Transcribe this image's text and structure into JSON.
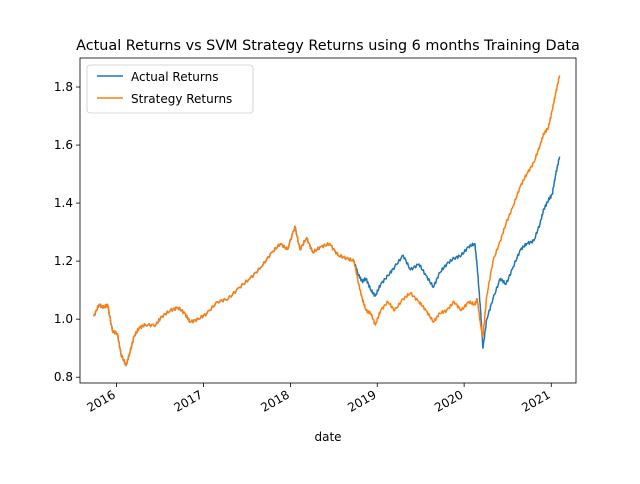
{
  "chart_data": {
    "type": "line",
    "title": "Actual Returns vs SVM Strategy Returns using 6 months Training Data",
    "xlabel": "date",
    "ylabel": "",
    "xlim": [
      "2015-08-01",
      "2021-04-15"
    ],
    "ylim": [
      0.78,
      1.9
    ],
    "x_ticks": [
      {
        "label": "2016",
        "date": "2016-01-01"
      },
      {
        "label": "2017",
        "date": "2017-01-01"
      },
      {
        "label": "2018",
        "date": "2018-01-01"
      },
      {
        "label": "2019",
        "date": "2019-01-01"
      },
      {
        "label": "2020",
        "date": "2020-01-01"
      },
      {
        "label": "2021",
        "date": "2021-01-01"
      }
    ],
    "y_ticks": [
      0.8,
      1.0,
      1.2,
      1.4,
      1.6,
      1.8
    ],
    "y_tick_labels": [
      "0.8",
      "1.0",
      "1.2",
      "1.4",
      "1.6",
      "1.8"
    ],
    "legend_position": "top-left",
    "grid": false,
    "series": [
      {
        "name": "Actual Returns",
        "color": "#1f77b4",
        "points": [
          [
            "2015-09-28",
            1.01
          ],
          [
            "2015-10-20",
            1.05
          ],
          [
            "2015-11-10",
            1.04
          ],
          [
            "2015-11-25",
            1.05
          ],
          [
            "2015-12-15",
            0.96
          ],
          [
            "2016-01-05",
            0.95
          ],
          [
            "2016-01-20",
            0.88
          ],
          [
            "2016-02-10",
            0.84
          ],
          [
            "2016-02-25",
            0.88
          ],
          [
            "2016-03-15",
            0.94
          ],
          [
            "2016-04-05",
            0.97
          ],
          [
            "2016-05-01",
            0.98
          ],
          [
            "2016-06-15",
            0.98
          ],
          [
            "2016-07-10",
            1.01
          ],
          [
            "2016-08-15",
            1.03
          ],
          [
            "2016-09-15",
            1.04
          ],
          [
            "2016-10-15",
            1.02
          ],
          [
            "2016-11-05",
            0.99
          ],
          [
            "2016-12-10",
            1.0
          ],
          [
            "2017-01-15",
            1.02
          ],
          [
            "2017-03-01",
            1.06
          ],
          [
            "2017-04-15",
            1.07
          ],
          [
            "2017-06-01",
            1.11
          ],
          [
            "2017-07-15",
            1.14
          ],
          [
            "2017-09-01",
            1.18
          ],
          [
            "2017-10-15",
            1.23
          ],
          [
            "2017-11-20",
            1.26
          ],
          [
            "2017-12-20",
            1.24
          ],
          [
            "2018-01-20",
            1.32
          ],
          [
            "2018-02-10",
            1.24
          ],
          [
            "2018-03-10",
            1.28
          ],
          [
            "2018-04-05",
            1.23
          ],
          [
            "2018-05-10",
            1.25
          ],
          [
            "2018-06-15",
            1.26
          ],
          [
            "2018-07-20",
            1.22
          ],
          [
            "2018-08-25",
            1.21
          ],
          [
            "2018-09-25",
            1.2
          ],
          [
            "2018-10-15",
            1.15
          ],
          [
            "2018-10-30",
            1.13
          ],
          [
            "2018-11-15",
            1.14
          ],
          [
            "2018-12-05",
            1.1
          ],
          [
            "2018-12-24",
            1.08
          ],
          [
            "2019-01-15",
            1.12
          ],
          [
            "2019-02-15",
            1.15
          ],
          [
            "2019-03-15",
            1.18
          ],
          [
            "2019-04-20",
            1.22
          ],
          [
            "2019-05-20",
            1.17
          ],
          [
            "2019-06-25",
            1.19
          ],
          [
            "2019-07-25",
            1.15
          ],
          [
            "2019-08-25",
            1.11
          ],
          [
            "2019-09-20",
            1.16
          ],
          [
            "2019-10-20",
            1.19
          ],
          [
            "2019-11-20",
            1.21
          ],
          [
            "2019-12-20",
            1.22
          ],
          [
            "2020-01-20",
            1.25
          ],
          [
            "2020-02-15",
            1.26
          ],
          [
            "2020-02-25",
            1.18
          ],
          [
            "2020-03-10",
            1.03
          ],
          [
            "2020-03-20",
            0.9
          ],
          [
            "2020-04-05",
            1.0
          ],
          [
            "2020-05-01",
            1.07
          ],
          [
            "2020-06-01",
            1.14
          ],
          [
            "2020-06-25",
            1.12
          ],
          [
            "2020-07-25",
            1.18
          ],
          [
            "2020-08-25",
            1.24
          ],
          [
            "2020-09-20",
            1.26
          ],
          [
            "2020-10-20",
            1.27
          ],
          [
            "2020-11-15",
            1.33
          ],
          [
            "2020-12-01",
            1.38
          ],
          [
            "2020-12-20",
            1.41
          ],
          [
            "2021-01-05",
            1.43
          ],
          [
            "2021-01-20",
            1.5
          ],
          [
            "2021-02-05",
            1.56
          ]
        ]
      },
      {
        "name": "Strategy Returns",
        "color": "#ff7f0e",
        "points": [
          [
            "2015-09-28",
            1.01
          ],
          [
            "2015-10-20",
            1.05
          ],
          [
            "2015-11-10",
            1.04
          ],
          [
            "2015-11-25",
            1.05
          ],
          [
            "2015-12-15",
            0.96
          ],
          [
            "2016-01-05",
            0.95
          ],
          [
            "2016-01-20",
            0.88
          ],
          [
            "2016-02-10",
            0.84
          ],
          [
            "2016-02-25",
            0.88
          ],
          [
            "2016-03-15",
            0.94
          ],
          [
            "2016-04-05",
            0.97
          ],
          [
            "2016-05-01",
            0.98
          ],
          [
            "2016-06-15",
            0.98
          ],
          [
            "2016-07-10",
            1.01
          ],
          [
            "2016-08-15",
            1.03
          ],
          [
            "2016-09-15",
            1.04
          ],
          [
            "2016-10-15",
            1.02
          ],
          [
            "2016-11-05",
            0.99
          ],
          [
            "2016-12-10",
            1.0
          ],
          [
            "2017-01-15",
            1.02
          ],
          [
            "2017-03-01",
            1.06
          ],
          [
            "2017-04-15",
            1.07
          ],
          [
            "2017-06-01",
            1.11
          ],
          [
            "2017-07-15",
            1.14
          ],
          [
            "2017-09-01",
            1.18
          ],
          [
            "2017-10-15",
            1.23
          ],
          [
            "2017-11-20",
            1.26
          ],
          [
            "2017-12-20",
            1.24
          ],
          [
            "2018-01-20",
            1.32
          ],
          [
            "2018-02-10",
            1.24
          ],
          [
            "2018-03-10",
            1.28
          ],
          [
            "2018-04-05",
            1.23
          ],
          [
            "2018-05-10",
            1.25
          ],
          [
            "2018-06-15",
            1.26
          ],
          [
            "2018-07-20",
            1.22
          ],
          [
            "2018-08-25",
            1.21
          ],
          [
            "2018-09-25",
            1.2
          ],
          [
            "2018-10-15",
            1.12
          ],
          [
            "2018-10-30",
            1.07
          ],
          [
            "2018-11-15",
            1.03
          ],
          [
            "2018-12-05",
            1.02
          ],
          [
            "2018-12-24",
            0.98
          ],
          [
            "2019-01-15",
            1.03
          ],
          [
            "2019-02-15",
            1.06
          ],
          [
            "2019-03-15",
            1.03
          ],
          [
            "2019-04-20",
            1.07
          ],
          [
            "2019-05-20",
            1.09
          ],
          [
            "2019-06-25",
            1.06
          ],
          [
            "2019-07-25",
            1.03
          ],
          [
            "2019-08-25",
            0.99
          ],
          [
            "2019-09-20",
            1.02
          ],
          [
            "2019-10-20",
            1.03
          ],
          [
            "2019-11-20",
            1.06
          ],
          [
            "2019-12-20",
            1.03
          ],
          [
            "2020-01-20",
            1.06
          ],
          [
            "2020-02-15",
            1.05
          ],
          [
            "2020-02-25",
            1.07
          ],
          [
            "2020-03-10",
            0.98
          ],
          [
            "2020-03-20",
            0.94
          ],
          [
            "2020-04-05",
            1.08
          ],
          [
            "2020-05-01",
            1.2
          ],
          [
            "2020-06-01",
            1.27
          ],
          [
            "2020-06-25",
            1.33
          ],
          [
            "2020-07-25",
            1.39
          ],
          [
            "2020-08-25",
            1.46
          ],
          [
            "2020-09-20",
            1.5
          ],
          [
            "2020-10-20",
            1.54
          ],
          [
            "2020-11-15",
            1.6
          ],
          [
            "2020-12-01",
            1.64
          ],
          [
            "2020-12-20",
            1.66
          ],
          [
            "2021-01-05",
            1.72
          ],
          [
            "2021-01-20",
            1.78
          ],
          [
            "2021-02-05",
            1.84
          ]
        ]
      }
    ]
  }
}
